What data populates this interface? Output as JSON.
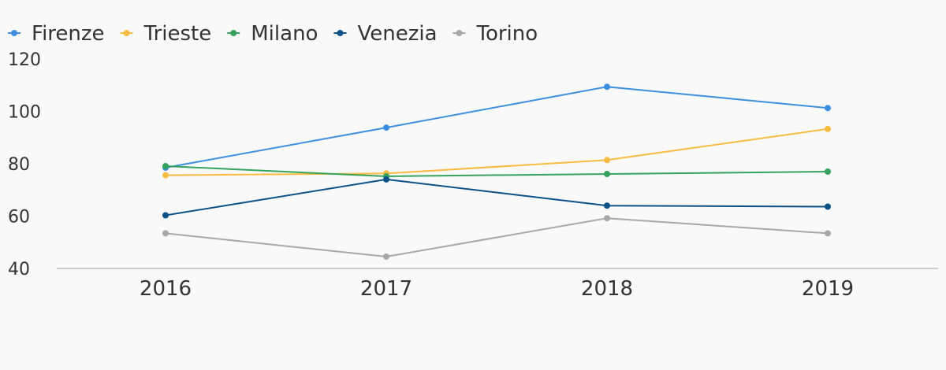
{
  "chart_data": {
    "type": "line",
    "categories": [
      "2016",
      "2017",
      "2018",
      "2019"
    ],
    "ylim": [
      40,
      120
    ],
    "yticks": [
      40,
      60,
      80,
      100,
      120
    ],
    "grid": false,
    "legend_position": "top-left",
    "series": [
      {
        "name": "Firenze",
        "color": "#3b8fe0",
        "values": [
          78.5,
          93.8,
          109.4,
          101.3
        ]
      },
      {
        "name": "Trieste",
        "color": "#f9bb3f",
        "values": [
          75.6,
          76.3,
          81.4,
          93.3
        ]
      },
      {
        "name": "Milano",
        "color": "#34a35e",
        "values": [
          79.1,
          75.2,
          76.1,
          77.0
        ]
      },
      {
        "name": "Venezia",
        "color": "#0a5189",
        "values": [
          60.3,
          74.0,
          64.0,
          63.6
        ]
      },
      {
        "name": "Torino",
        "color": "#a8a8a8",
        "values": [
          53.4,
          44.5,
          59.2,
          53.4
        ]
      }
    ]
  }
}
